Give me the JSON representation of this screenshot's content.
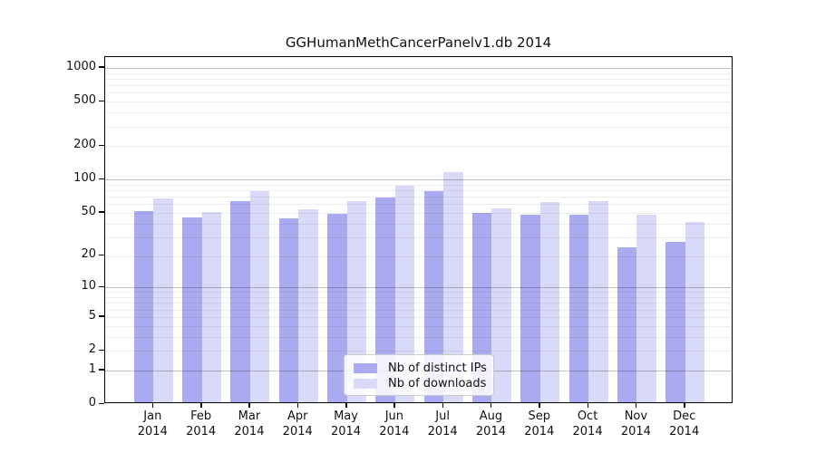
{
  "chart_data": {
    "type": "bar",
    "title": "GGHumanMethCancerPanelv1.db 2014",
    "x_axis": {
      "categories": [
        "Jan",
        "Feb",
        "Mar",
        "Apr",
        "May",
        "Jun",
        "Jul",
        "Aug",
        "Sep",
        "Oct",
        "Nov",
        "Dec"
      ],
      "year_label": "2014"
    },
    "y_axis": {
      "scale": "log1p",
      "ticks": [
        0,
        1,
        2,
        5,
        10,
        20,
        50,
        100,
        200,
        500,
        1000
      ],
      "ylim": [
        0,
        1250
      ]
    },
    "series": [
      {
        "name": "Nb of distinct IPs",
        "color": "#aaaaf0",
        "values": [
          50,
          44,
          61,
          43,
          47,
          66,
          76,
          48,
          46,
          46,
          23,
          26
        ]
      },
      {
        "name": "Nb of downloads",
        "color": "#d9d9f8",
        "values": [
          65,
          49,
          76,
          52,
          61,
          84,
          113,
          53,
          60,
          61,
          46,
          40
        ]
      }
    ],
    "legend_position": "lower center",
    "grid": "horizontal"
  }
}
